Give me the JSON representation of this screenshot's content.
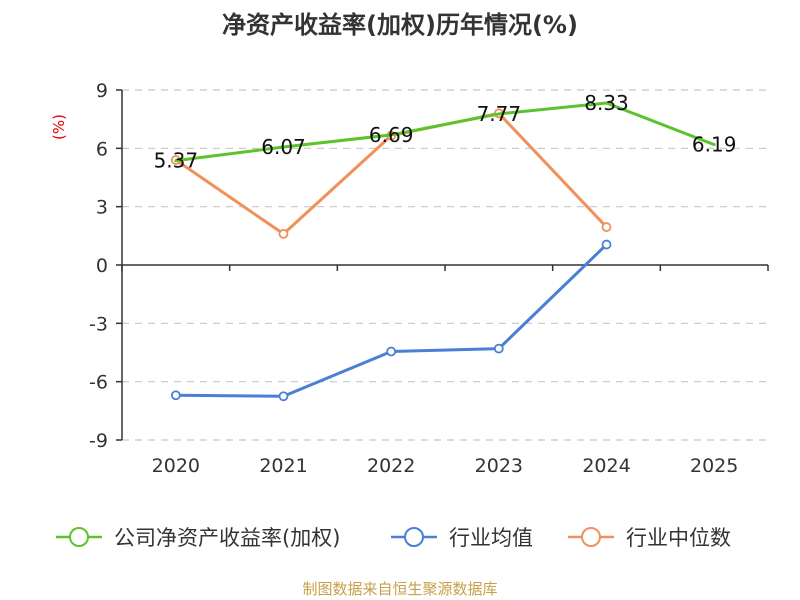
{
  "chart_data": {
    "type": "line",
    "title": "净资产收益率(加权)历年情况(%)",
    "unit_label": "(%)",
    "categories": [
      "2020",
      "2021",
      "2022",
      "2023",
      "2024",
      "2025"
    ],
    "ylim": [
      -9,
      9
    ],
    "yticks": [
      9,
      6,
      3,
      0,
      -3,
      -6,
      -9
    ],
    "grid": true,
    "legend_position": "bottom",
    "series": [
      {
        "name": "公司净资产收益率(加权)",
        "color": "#5cc42b",
        "values": [
          5.37,
          6.07,
          6.69,
          7.77,
          8.33,
          6.19
        ],
        "labels": [
          "5.37",
          "6.07",
          "6.69",
          "7.77",
          "8.33",
          "6.19"
        ],
        "markers": false
      },
      {
        "name": "行业均值",
        "color": "#4a7fd6",
        "values": [
          -6.7,
          -6.75,
          -4.45,
          -4.3,
          1.05,
          null
        ],
        "markers": true
      },
      {
        "name": "行业中位数",
        "color": "#f0905a",
        "values": [
          5.4,
          1.6,
          6.65,
          7.8,
          1.95,
          null
        ],
        "markers": true
      }
    ],
    "source": "制图数据来自恒生聚源数据库"
  }
}
